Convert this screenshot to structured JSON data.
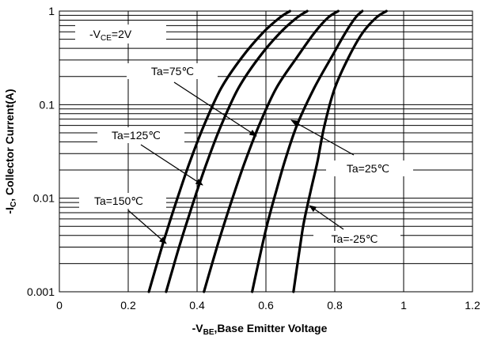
{
  "chart_data": {
    "type": "line",
    "xlabel": "-VBE,Base Emitter Voltage",
    "xlabel_parts": {
      "prefix": "-V",
      "sub": "BE",
      "suffix": ",Base Emitter Voltage"
    },
    "ylabel": "-IC, Collector Current(A)",
    "ylabel_parts": {
      "prefix": "-I",
      "sub": "C",
      "suffix": ", Collector Current(A)"
    },
    "xlim": [
      0,
      1.2
    ],
    "ylim": [
      0.001,
      1
    ],
    "yscale": "log",
    "x_ticks": [
      "0",
      "0.2",
      "0.4",
      "0.6",
      "0.8",
      "1",
      "1.2"
    ],
    "x_tick_values": [
      0,
      0.2,
      0.4,
      0.6,
      0.8,
      1,
      1.2
    ],
    "y_ticks": [
      "0.001",
      "0.01",
      "0.1",
      "1"
    ],
    "y_tick_values": [
      0.001,
      0.01,
      0.1,
      1
    ],
    "grid": true,
    "condition": {
      "prefix": "-V",
      "sub": "CE",
      "suffix": "=2V"
    },
    "series": [
      {
        "name": "Ta=150℃",
        "x": [
          0.26,
          0.28,
          0.3,
          0.32,
          0.35,
          0.38,
          0.42,
          0.47,
          0.53,
          0.59,
          0.64,
          0.67
        ],
        "y": [
          0.001,
          0.0018,
          0.0032,
          0.0055,
          0.012,
          0.025,
          0.06,
          0.15,
          0.32,
          0.58,
          0.85,
          1.0
        ]
      },
      {
        "name": "Ta=125℃",
        "x": [
          0.31,
          0.33,
          0.35,
          0.37,
          0.4,
          0.43,
          0.47,
          0.52,
          0.58,
          0.64,
          0.69,
          0.72
        ],
        "y": [
          0.001,
          0.0018,
          0.0032,
          0.0055,
          0.012,
          0.025,
          0.06,
          0.15,
          0.32,
          0.58,
          0.85,
          1.0
        ]
      },
      {
        "name": "Ta=75℃",
        "x": [
          0.42,
          0.44,
          0.46,
          0.48,
          0.51,
          0.54,
          0.58,
          0.63,
          0.69,
          0.74,
          0.78,
          0.81
        ],
        "y": [
          0.001,
          0.0018,
          0.0032,
          0.0055,
          0.012,
          0.025,
          0.06,
          0.15,
          0.32,
          0.58,
          0.85,
          1.0
        ]
      },
      {
        "name": "Ta=25℃",
        "x": [
          0.56,
          0.575,
          0.59,
          0.605,
          0.63,
          0.655,
          0.69,
          0.74,
          0.79,
          0.83,
          0.86,
          0.88
        ],
        "y": [
          0.001,
          0.0018,
          0.0032,
          0.0055,
          0.012,
          0.025,
          0.06,
          0.15,
          0.32,
          0.58,
          0.85,
          1.0
        ]
      },
      {
        "name": "Ta=-25℃",
        "x": [
          0.68,
          0.69,
          0.7,
          0.71,
          0.73,
          0.75,
          0.77,
          0.8,
          0.84,
          0.88,
          0.92,
          0.95
        ],
        "y": [
          0.001,
          0.0018,
          0.0032,
          0.0055,
          0.012,
          0.025,
          0.06,
          0.15,
          0.32,
          0.58,
          0.85,
          1.0
        ]
      }
    ],
    "annotations": [
      {
        "text": "Ta=75℃",
        "series": "Ta=75℃"
      },
      {
        "text": "Ta=125℃",
        "series": "Ta=125℃"
      },
      {
        "text": "Ta=150℃",
        "series": "Ta=150℃"
      },
      {
        "text": "Ta=25℃",
        "series": "Ta=25℃"
      },
      {
        "text": "Ta=-25℃",
        "series": "Ta=-25℃"
      }
    ]
  }
}
